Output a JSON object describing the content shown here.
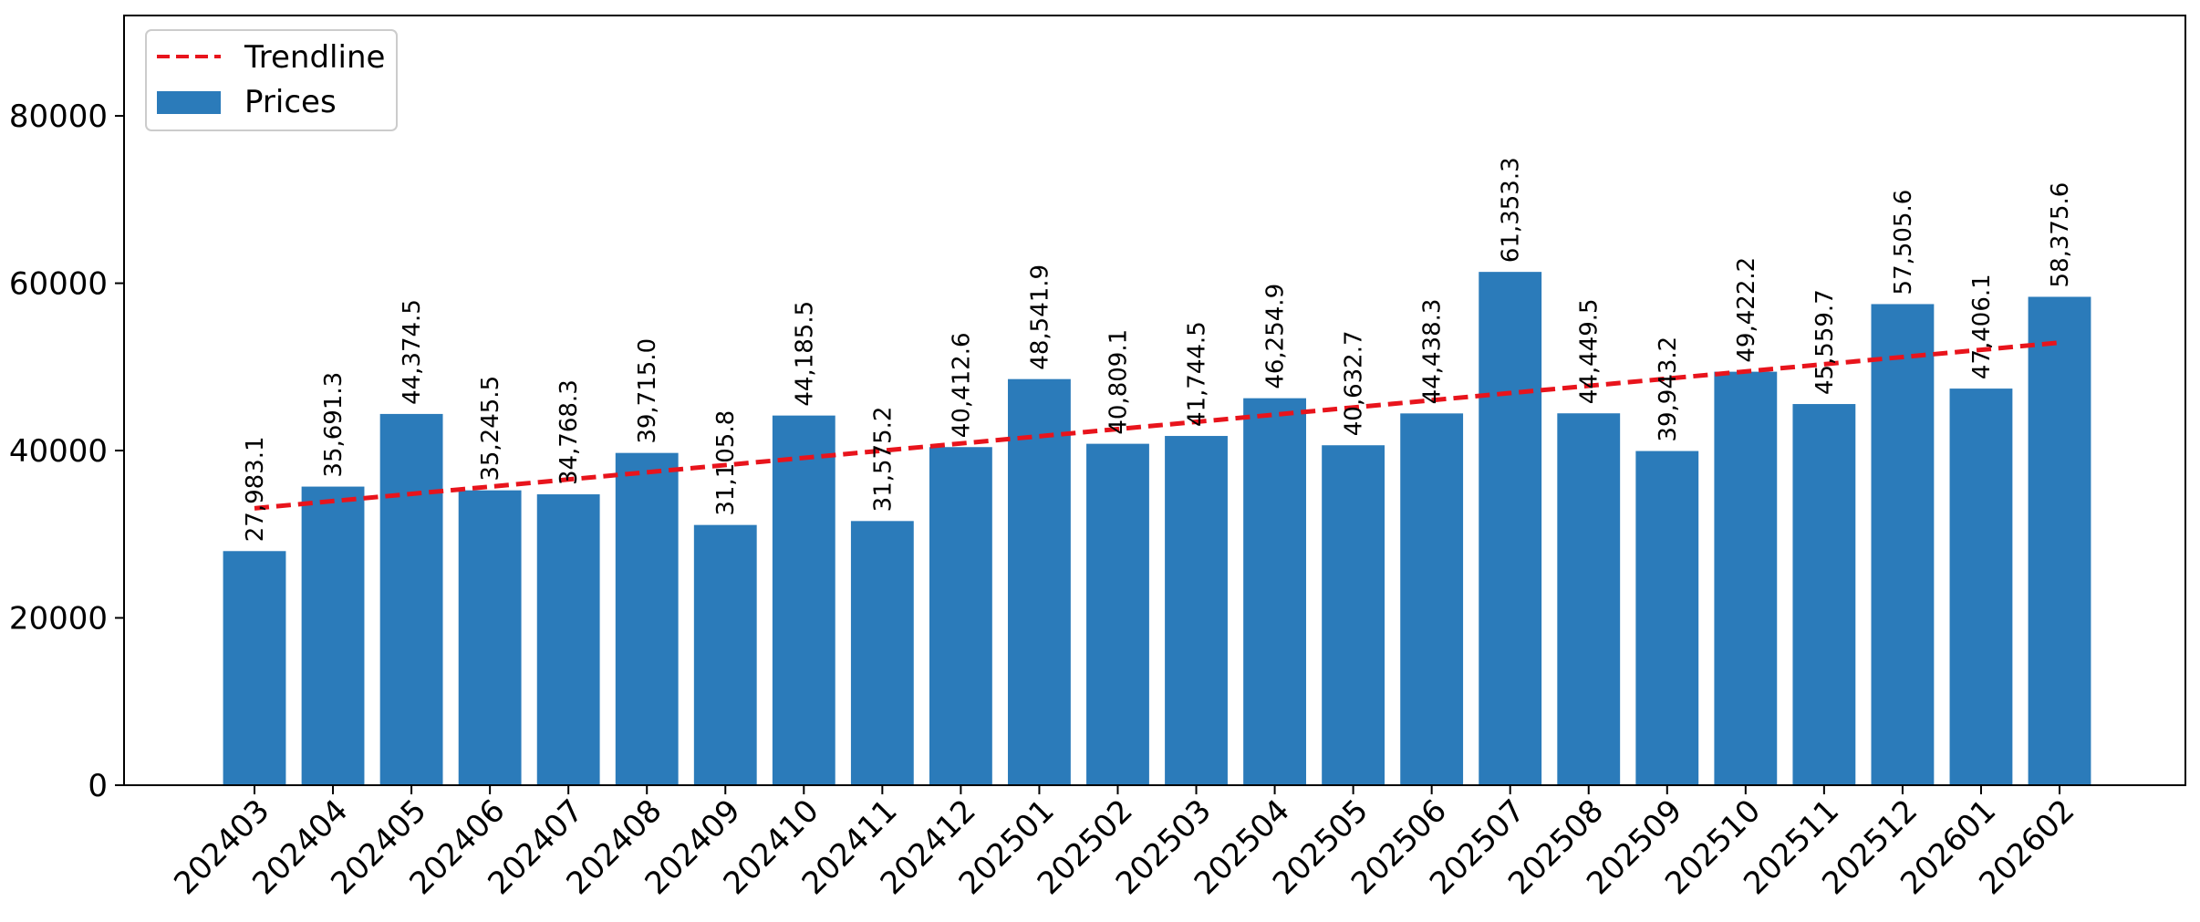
{
  "chart_data": {
    "type": "bar",
    "categories": [
      "202403",
      "202404",
      "202405",
      "202406",
      "202407",
      "202408",
      "202409",
      "202410",
      "202411",
      "202412",
      "202501",
      "202502",
      "202503",
      "202504",
      "202505",
      "202506",
      "202507",
      "202508",
      "202509",
      "202510",
      "202511",
      "202512",
      "202601",
      "202602"
    ],
    "series": [
      {
        "name": "Prices",
        "type": "bar",
        "color": "#2b7bba",
        "values": [
          27983.1,
          35691.3,
          44374.5,
          35245.5,
          34768.3,
          39715.0,
          31105.8,
          44185.5,
          31575.2,
          40412.6,
          48541.9,
          40809.1,
          41744.5,
          46254.9,
          40632.7,
          44438.3,
          61353.3,
          44449.5,
          39943.2,
          49422.2,
          45559.7,
          57505.6,
          47406.1,
          58375.6
        ],
        "data_labels": [
          "27,983.1",
          "35,691.3",
          "44,374.5",
          "35,245.5",
          "34,768.3",
          "39,715.0",
          "31,105.8",
          "44,185.5",
          "31,575.2",
          "40,412.6",
          "48,541.9",
          "40,809.1",
          "41,744.5",
          "46,254.9",
          "40,632.7",
          "44,438.3",
          "61,353.3",
          "44,449.5",
          "39,943.2",
          "49,422.2",
          "45,559.7",
          "57,505.6",
          "47,406.1",
          "58,375.6"
        ]
      },
      {
        "name": "Trendline",
        "type": "line",
        "style": "dashed",
        "color": "#e8141c",
        "start_value": 33100,
        "end_value": 52900
      }
    ],
    "ylim": [
      0,
      92000
    ],
    "yticks": [
      0,
      20000,
      40000,
      60000,
      80000
    ],
    "ytick_labels": [
      "0",
      "20000",
      "40000",
      "60000",
      "80000"
    ],
    "xtick_rotation": 45,
    "legend_position": "top-left",
    "grid": false,
    "title": "",
    "xlabel": "",
    "ylabel": ""
  }
}
